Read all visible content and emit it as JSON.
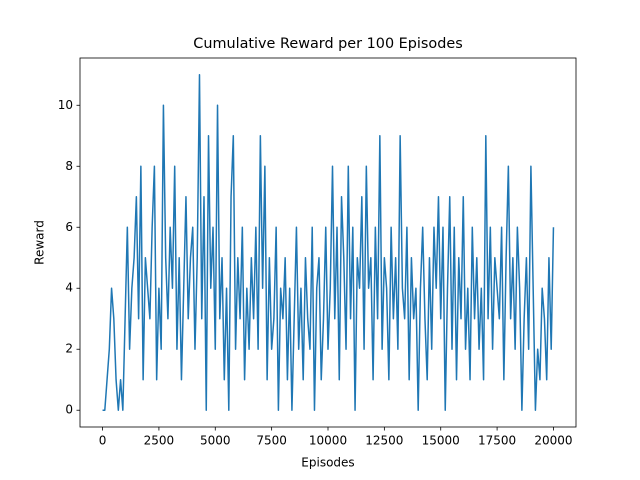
{
  "chart_data": {
    "type": "line",
    "title": "Cumulative Reward per 100 Episodes",
    "x_label": "Episodes",
    "y_label": "Reward",
    "x": [
      0,
      100,
      200,
      300,
      400,
      500,
      600,
      700,
      800,
      900,
      1000,
      1100,
      1200,
      1300,
      1400,
      1500,
      1600,
      1700,
      1800,
      1900,
      2000,
      2100,
      2200,
      2300,
      2400,
      2500,
      2600,
      2700,
      2800,
      2900,
      3000,
      3100,
      3200,
      3300,
      3400,
      3500,
      3600,
      3700,
      3800,
      3900,
      4000,
      4100,
      4200,
      4300,
      4400,
      4500,
      4600,
      4700,
      4800,
      4900,
      5000,
      5100,
      5200,
      5300,
      5400,
      5500,
      5600,
      5700,
      5800,
      5900,
      6000,
      6100,
      6200,
      6300,
      6400,
      6500,
      6600,
      6700,
      6800,
      6900,
      7000,
      7100,
      7200,
      7300,
      7400,
      7500,
      7600,
      7700,
      7800,
      7900,
      8000,
      8100,
      8200,
      8300,
      8400,
      8500,
      8600,
      8700,
      8800,
      8900,
      9000,
      9100,
      9200,
      9300,
      9400,
      9500,
      9600,
      9700,
      9800,
      9900,
      10000,
      10100,
      10200,
      10300,
      10400,
      10500,
      10600,
      10700,
      10800,
      10900,
      11000,
      11100,
      11200,
      11300,
      11400,
      11500,
      11600,
      11700,
      11800,
      11900,
      12000,
      12100,
      12200,
      12300,
      12400,
      12500,
      12600,
      12700,
      12800,
      12900,
      13000,
      13100,
      13200,
      13300,
      13400,
      13500,
      13600,
      13700,
      13800,
      13900,
      14000,
      14100,
      14200,
      14300,
      14400,
      14500,
      14600,
      14700,
      14800,
      14900,
      15000,
      15100,
      15200,
      15300,
      15400,
      15500,
      15600,
      15700,
      15800,
      15900,
      16000,
      16100,
      16200,
      16300,
      16400,
      16500,
      16600,
      16700,
      16800,
      16900,
      17000,
      17100,
      17200,
      17300,
      17400,
      17500,
      17600,
      17700,
      17800,
      17900,
      18000,
      18100,
      18200,
      18300,
      18400,
      18500,
      18600,
      18700,
      18800,
      18900,
      19000,
      19100,
      19200,
      19300,
      19400,
      19500,
      19600,
      19700,
      19800,
      19900,
      20000
    ],
    "series": [
      {
        "name": "Reward",
        "color": "#1f77b4",
        "values": [
          0,
          0,
          1,
          2,
          4,
          3,
          1,
          0,
          1,
          0,
          3,
          6,
          2,
          4,
          5,
          7,
          3,
          8,
          1,
          5,
          4,
          3,
          6,
          8,
          1,
          4,
          2,
          10,
          5,
          3,
          6,
          4,
          8,
          2,
          5,
          1,
          4,
          7,
          3,
          5,
          6,
          2,
          5,
          11,
          3,
          7,
          0,
          9,
          4,
          6,
          2,
          10,
          3,
          5,
          1,
          4,
          0,
          7,
          9,
          2,
          5,
          3,
          6,
          1,
          4,
          2,
          5,
          3,
          6,
          2,
          9,
          4,
          8,
          1,
          5,
          2,
          3,
          6,
          0,
          4,
          3,
          5,
          1,
          4,
          0,
          3,
          6,
          2,
          4,
          1,
          5,
          3,
          2,
          6,
          0,
          4,
          5,
          1,
          3,
          6,
          2,
          4,
          8,
          3,
          6,
          1,
          7,
          5,
          2,
          8,
          3,
          6,
          0,
          5,
          4,
          7,
          2,
          8,
          4,
          5,
          1,
          6,
          3,
          9,
          2,
          5,
          4,
          1,
          6,
          3,
          5,
          2,
          9,
          4,
          3,
          6,
          1,
          5,
          3,
          4,
          0,
          4,
          6,
          3,
          1,
          5,
          2,
          6,
          4,
          7,
          3,
          6,
          0,
          4,
          7,
          2,
          6,
          1,
          5,
          3,
          7,
          2,
          4,
          1,
          6,
          3,
          5,
          2,
          4,
          1,
          9,
          3,
          6,
          2,
          5,
          4,
          3,
          6,
          1,
          5,
          8,
          3,
          5,
          2,
          6,
          4,
          0,
          3,
          5,
          2,
          8,
          4,
          0,
          2,
          1,
          4,
          3,
          1,
          5,
          2,
          6
        ]
      }
    ],
    "xlim": [
      -1000,
      21000
    ],
    "ylim": [
      -0.55,
      11.55
    ],
    "xticks": [
      0,
      2500,
      5000,
      7500,
      10000,
      12500,
      15000,
      17500,
      20000
    ],
    "yticks": [
      0,
      2,
      4,
      6,
      8,
      10
    ]
  }
}
